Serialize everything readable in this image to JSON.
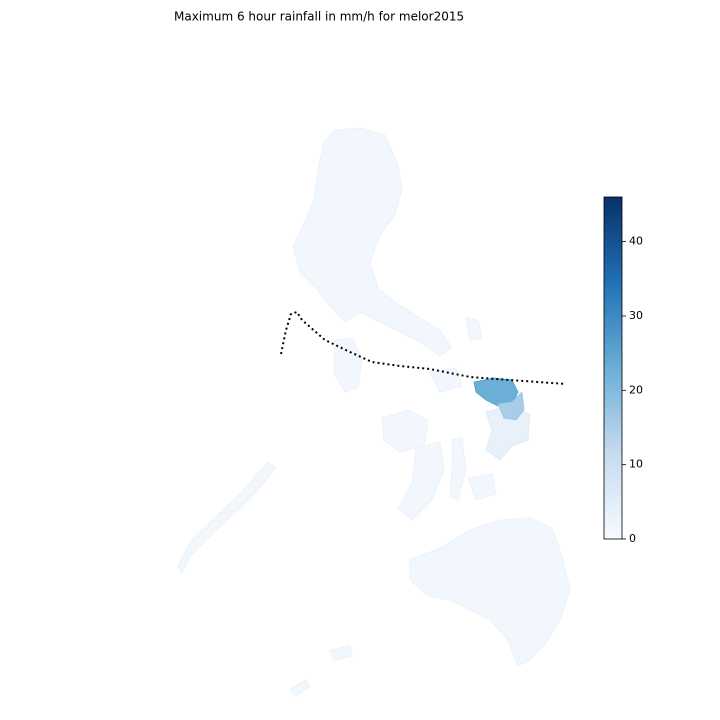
{
  "map": {
    "title": "Maximum 6 hour rainfall in mm/h for melor2015",
    "colorbar": {
      "range": [
        0,
        46
      ],
      "ticks": [
        0,
        10,
        20,
        30,
        40
      ]
    }
  }
}
